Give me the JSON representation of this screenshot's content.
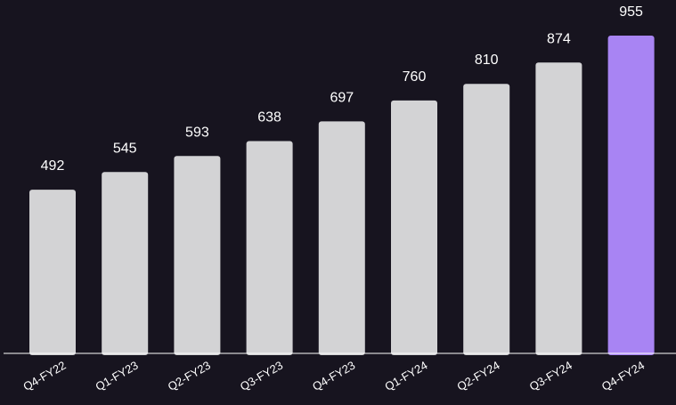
{
  "chart_data": {
    "type": "bar",
    "categories": [
      "Q4-FY22",
      "Q1-FY23",
      "Q2-FY23",
      "Q3-FY23",
      "Q4-FY23",
      "Q1-FY24",
      "Q2-FY24",
      "Q3-FY24",
      "Q4-FY24"
    ],
    "values": [
      492,
      545,
      593,
      638,
      697,
      760,
      810,
      874,
      955
    ],
    "title": "",
    "xlabel": "",
    "ylabel": "",
    "ylim": [
      0,
      1000
    ],
    "grid": false,
    "legend": "none",
    "data_labels": true,
    "colors": {
      "background": "#17141f",
      "bar": "#d3d3d5",
      "highlight": "#a884f3",
      "axis": "#ffffff",
      "text": "#ffffff"
    },
    "highlight_index": 8
  }
}
